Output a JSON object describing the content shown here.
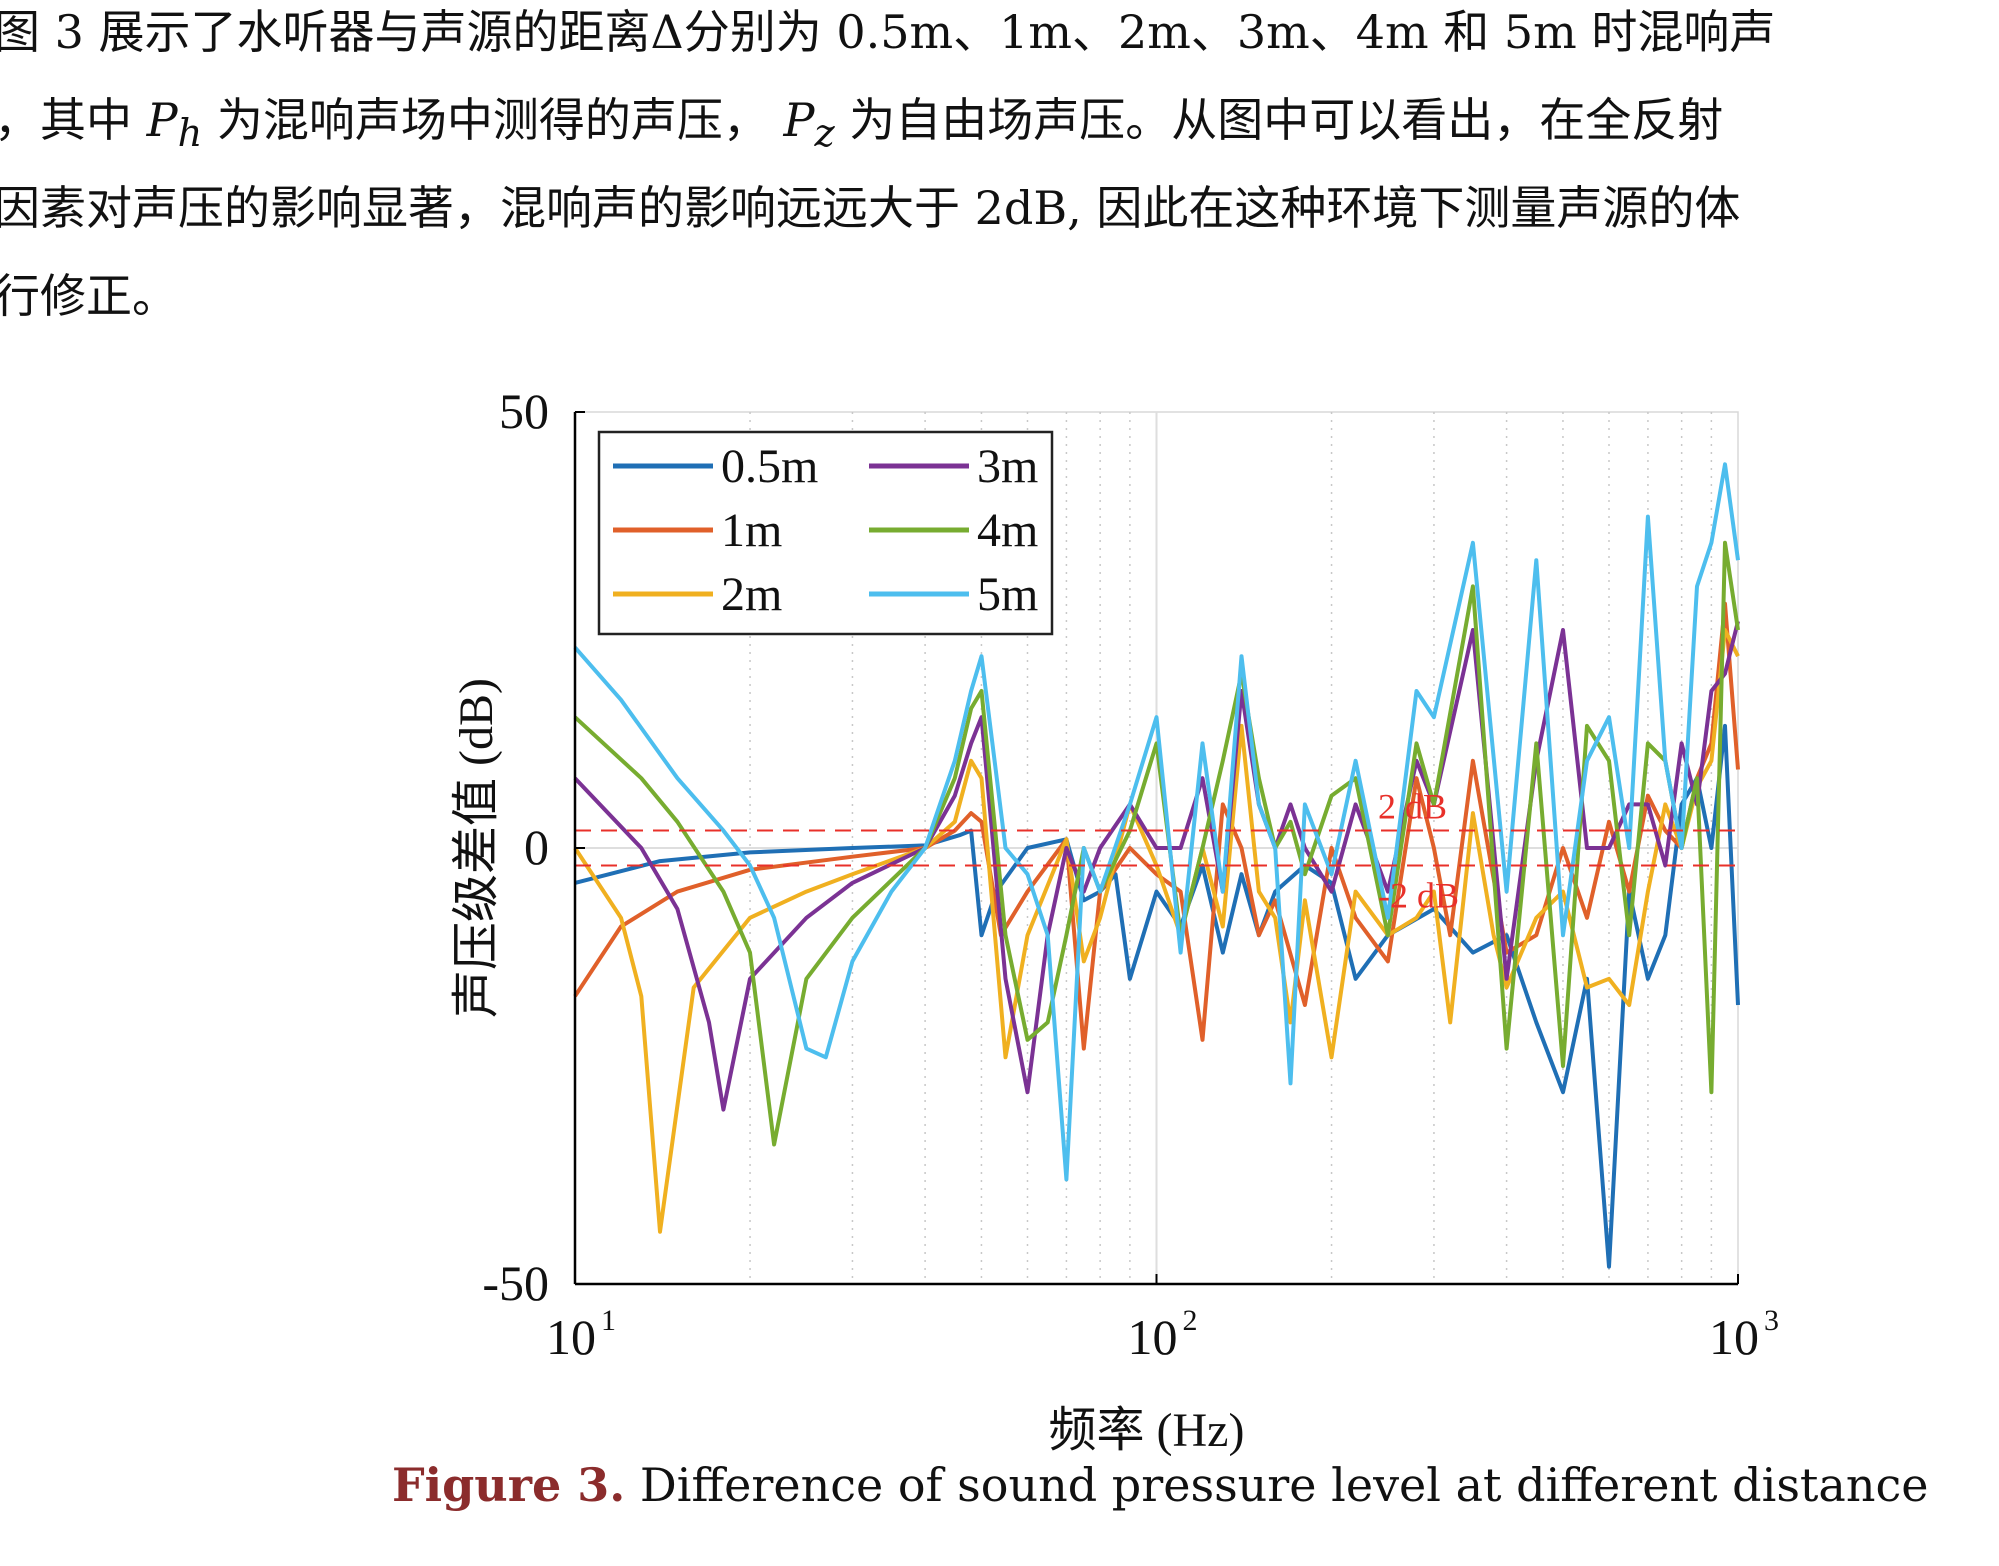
{
  "paragraph": {
    "line1": "图 3 展示了水听器与声源的距离Δ分别为 0.5m、1m、2m、3m、4m 和 5m 时混响声",
    "line2_a": "，其中 ",
    "line2_ph": "P",
    "line2_ph_sub": "h",
    "line2_b": " 为混响声场中测得的声压，  ",
    "line2_pz": "P",
    "line2_pz_sub": "z",
    "line2_c": " 为自由场声压。从图中可以看出，在全反射",
    "line3": "因素对声压的影响显著，混响声的影响远远大于 2dB, 因此在这种环境下测量声源的体",
    "line4": "行修正。"
  },
  "caption": {
    "label": "Figure 3.",
    "text": " Difference of sound pressure level at different distance"
  },
  "chart_data": {
    "type": "line",
    "xscale": "log",
    "xlim": [
      10,
      1000
    ],
    "ylim": [
      -50,
      50
    ],
    "xlabel": "频率 (Hz)",
    "ylabel": "声压级差值 (dB)",
    "xticks": [
      {
        "base": "10",
        "exp": "1"
      },
      {
        "base": "10",
        "exp": "2"
      },
      {
        "base": "10",
        "exp": "3"
      }
    ],
    "yticks": [
      "50",
      "0",
      "-50"
    ],
    "ytick_values": [
      50,
      0,
      -50
    ],
    "grid": true,
    "legend_position": "top-left",
    "reference_lines": [
      {
        "y": 2,
        "label": "2 dB",
        "color": "#e8302a"
      },
      {
        "y": -2,
        "label": "-2 dB",
        "color": "#e8302a"
      }
    ],
    "series": [
      {
        "name": "0.5m",
        "color": "#1f6fb5",
        "points": [
          [
            10,
            -4
          ],
          [
            14,
            -1.5
          ],
          [
            20,
            -0.5
          ],
          [
            30,
            0
          ],
          [
            40,
            0.3
          ],
          [
            46,
            1.5
          ],
          [
            48,
            2
          ],
          [
            50,
            -10
          ],
          [
            53,
            -5
          ],
          [
            60,
            0
          ],
          [
            70,
            1
          ],
          [
            75,
            -6
          ],
          [
            80,
            -5
          ],
          [
            85,
            -3
          ],
          [
            90,
            -15
          ],
          [
            100,
            -5
          ],
          [
            110,
            -9
          ],
          [
            120,
            -2
          ],
          [
            130,
            -12
          ],
          [
            140,
            -3
          ],
          [
            150,
            -10
          ],
          [
            160,
            -5
          ],
          [
            180,
            -2
          ],
          [
            200,
            -4
          ],
          [
            220,
            -15
          ],
          [
            250,
            -10
          ],
          [
            300,
            -7
          ],
          [
            350,
            -12
          ],
          [
            400,
            -10
          ],
          [
            450,
            -20
          ],
          [
            500,
            -28
          ],
          [
            550,
            -15
          ],
          [
            600,
            -48
          ],
          [
            650,
            -5
          ],
          [
            700,
            -15
          ],
          [
            750,
            -10
          ],
          [
            800,
            5
          ],
          [
            850,
            8
          ],
          [
            900,
            0
          ],
          [
            950,
            14
          ],
          [
            1000,
            -18
          ]
        ]
      },
      {
        "name": "1m",
        "color": "#e0602a",
        "points": [
          [
            10,
            -17
          ],
          [
            12,
            -9
          ],
          [
            15,
            -5
          ],
          [
            20,
            -2.5
          ],
          [
            30,
            -1
          ],
          [
            40,
            0
          ],
          [
            45,
            2
          ],
          [
            48,
            4
          ],
          [
            50,
            3
          ],
          [
            54,
            -10
          ],
          [
            60,
            -5
          ],
          [
            70,
            1
          ],
          [
            75,
            -23
          ],
          [
            80,
            -5
          ],
          [
            90,
            0
          ],
          [
            100,
            -3
          ],
          [
            110,
            -5
          ],
          [
            120,
            -22
          ],
          [
            130,
            5
          ],
          [
            140,
            0
          ],
          [
            150,
            -10
          ],
          [
            160,
            -6
          ],
          [
            180,
            -18
          ],
          [
            200,
            0
          ],
          [
            220,
            -8
          ],
          [
            250,
            -13
          ],
          [
            280,
            8
          ],
          [
            300,
            0
          ],
          [
            320,
            -10
          ],
          [
            350,
            10
          ],
          [
            400,
            -12
          ],
          [
            450,
            -10
          ],
          [
            500,
            0
          ],
          [
            550,
            -8
          ],
          [
            600,
            3
          ],
          [
            650,
            -5
          ],
          [
            700,
            6
          ],
          [
            750,
            2
          ],
          [
            800,
            0
          ],
          [
            850,
            8
          ],
          [
            900,
            12
          ],
          [
            950,
            28
          ],
          [
            1000,
            9
          ]
        ]
      },
      {
        "name": "2m",
        "color": "#f0b020",
        "points": [
          [
            10,
            0
          ],
          [
            12,
            -8
          ],
          [
            13,
            -17
          ],
          [
            14,
            -44
          ],
          [
            16,
            -16
          ],
          [
            20,
            -8
          ],
          [
            25,
            -5
          ],
          [
            30,
            -3
          ],
          [
            40,
            0
          ],
          [
            45,
            3
          ],
          [
            48,
            10
          ],
          [
            50,
            8
          ],
          [
            55,
            -24
          ],
          [
            60,
            -10
          ],
          [
            70,
            1
          ],
          [
            75,
            -13
          ],
          [
            80,
            -8
          ],
          [
            90,
            5
          ],
          [
            100,
            -2
          ],
          [
            110,
            -10
          ],
          [
            120,
            0
          ],
          [
            130,
            -9
          ],
          [
            140,
            14
          ],
          [
            150,
            -5
          ],
          [
            160,
            -8
          ],
          [
            170,
            -20
          ],
          [
            180,
            -6
          ],
          [
            200,
            -24
          ],
          [
            220,
            -5
          ],
          [
            250,
            -10
          ],
          [
            280,
            -8
          ],
          [
            300,
            -5
          ],
          [
            320,
            -20
          ],
          [
            350,
            4
          ],
          [
            380,
            -10
          ],
          [
            400,
            -16
          ],
          [
            450,
            -8
          ],
          [
            500,
            -5
          ],
          [
            550,
            -16
          ],
          [
            600,
            -15
          ],
          [
            650,
            -18
          ],
          [
            700,
            -5
          ],
          [
            750,
            5
          ],
          [
            800,
            0
          ],
          [
            850,
            7
          ],
          [
            900,
            10
          ],
          [
            950,
            25
          ],
          [
            1000,
            22
          ]
        ]
      },
      {
        "name": "3m",
        "color": "#7b3294",
        "points": [
          [
            10,
            8
          ],
          [
            13,
            0
          ],
          [
            15,
            -7
          ],
          [
            17,
            -20
          ],
          [
            18,
            -30
          ],
          [
            20,
            -15
          ],
          [
            25,
            -8
          ],
          [
            30,
            -4
          ],
          [
            40,
            0
          ],
          [
            45,
            6
          ],
          [
            48,
            12
          ],
          [
            50,
            15
          ],
          [
            55,
            -15
          ],
          [
            60,
            -28
          ],
          [
            65,
            -10
          ],
          [
            70,
            0
          ],
          [
            75,
            -5
          ],
          [
            80,
            0
          ],
          [
            90,
            5
          ],
          [
            100,
            0
          ],
          [
            110,
            0
          ],
          [
            120,
            8
          ],
          [
            130,
            -5
          ],
          [
            140,
            18
          ],
          [
            150,
            5
          ],
          [
            160,
            0
          ],
          [
            170,
            5
          ],
          [
            180,
            0
          ],
          [
            200,
            -5
          ],
          [
            220,
            5
          ],
          [
            250,
            -5
          ],
          [
            280,
            10
          ],
          [
            300,
            5
          ],
          [
            350,
            25
          ],
          [
            400,
            -15
          ],
          [
            450,
            10
          ],
          [
            500,
            25
          ],
          [
            550,
            0
          ],
          [
            600,
            0
          ],
          [
            650,
            5
          ],
          [
            700,
            5
          ],
          [
            750,
            -2
          ],
          [
            800,
            12
          ],
          [
            850,
            5
          ],
          [
            900,
            18
          ],
          [
            950,
            20
          ],
          [
            1000,
            26
          ]
        ]
      },
      {
        "name": "4m",
        "color": "#77ac30",
        "points": [
          [
            10,
            15
          ],
          [
            13,
            8
          ],
          [
            15,
            3
          ],
          [
            18,
            -5
          ],
          [
            20,
            -12
          ],
          [
            22,
            -34
          ],
          [
            25,
            -15
          ],
          [
            30,
            -8
          ],
          [
            40,
            0
          ],
          [
            45,
            8
          ],
          [
            48,
            16
          ],
          [
            50,
            18
          ],
          [
            55,
            -10
          ],
          [
            60,
            -22
          ],
          [
            65,
            -20
          ],
          [
            70,
            -10
          ],
          [
            75,
            0
          ],
          [
            80,
            -5
          ],
          [
            90,
            2
          ],
          [
            100,
            12
          ],
          [
            110,
            -10
          ],
          [
            120,
            0
          ],
          [
            130,
            10
          ],
          [
            140,
            20
          ],
          [
            150,
            8
          ],
          [
            160,
            0
          ],
          [
            170,
            3
          ],
          [
            180,
            -3
          ],
          [
            200,
            6
          ],
          [
            220,
            8
          ],
          [
            250,
            -10
          ],
          [
            280,
            12
          ],
          [
            300,
            5
          ],
          [
            350,
            30
          ],
          [
            400,
            -23
          ],
          [
            450,
            12
          ],
          [
            500,
            -25
          ],
          [
            550,
            14
          ],
          [
            600,
            10
          ],
          [
            650,
            -10
          ],
          [
            700,
            12
          ],
          [
            750,
            10
          ],
          [
            800,
            0
          ],
          [
            850,
            8
          ],
          [
            900,
            -28
          ],
          [
            950,
            35
          ],
          [
            1000,
            25
          ]
        ]
      },
      {
        "name": "5m",
        "color": "#4dbeee",
        "points": [
          [
            10,
            23
          ],
          [
            12,
            17
          ],
          [
            15,
            8
          ],
          [
            18,
            2
          ],
          [
            20,
            -2
          ],
          [
            22,
            -8
          ],
          [
            25,
            -23
          ],
          [
            27,
            -24
          ],
          [
            30,
            -13
          ],
          [
            35,
            -5
          ],
          [
            40,
            0
          ],
          [
            45,
            10
          ],
          [
            48,
            18
          ],
          [
            50,
            22
          ],
          [
            55,
            0
          ],
          [
            60,
            -3
          ],
          [
            65,
            -10
          ],
          [
            70,
            -38
          ],
          [
            75,
            0
          ],
          [
            80,
            -5
          ],
          [
            90,
            5
          ],
          [
            100,
            15
          ],
          [
            110,
            -12
          ],
          [
            120,
            12
          ],
          [
            130,
            -5
          ],
          [
            140,
            22
          ],
          [
            150,
            5
          ],
          [
            160,
            0
          ],
          [
            170,
            -27
          ],
          [
            180,
            5
          ],
          [
            200,
            -3
          ],
          [
            220,
            10
          ],
          [
            250,
            -8
          ],
          [
            280,
            18
          ],
          [
            300,
            15
          ],
          [
            350,
            35
          ],
          [
            400,
            -5
          ],
          [
            450,
            33
          ],
          [
            500,
            -10
          ],
          [
            550,
            10
          ],
          [
            600,
            15
          ],
          [
            650,
            0
          ],
          [
            700,
            38
          ],
          [
            750,
            10
          ],
          [
            800,
            0
          ],
          [
            850,
            30
          ],
          [
            900,
            35
          ],
          [
            950,
            44
          ],
          [
            1000,
            33
          ]
        ]
      }
    ]
  }
}
